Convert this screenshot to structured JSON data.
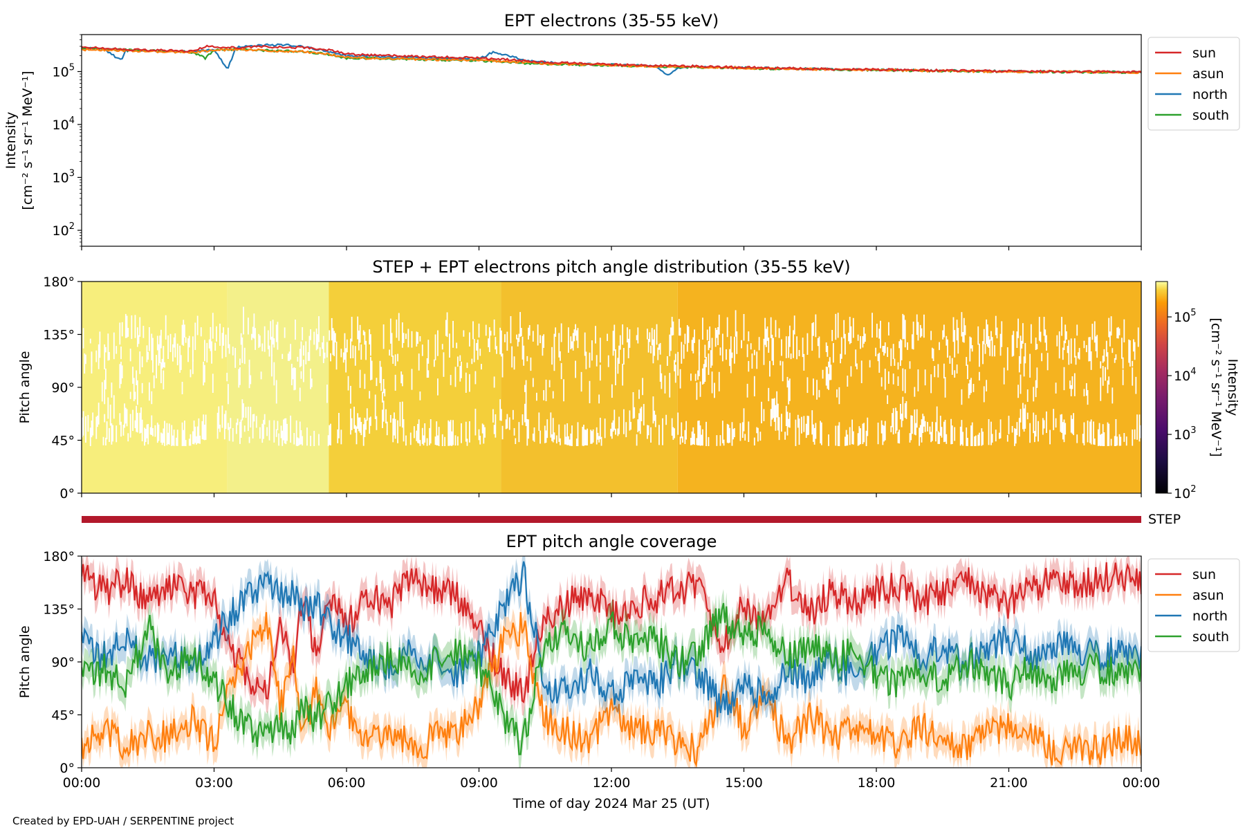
{
  "figure": {
    "credit": "Created by EPD-UAH / SERPENTINE project"
  },
  "chart_data": [
    {
      "type": "line",
      "title": "EPT electrons (35-55 keV)",
      "ylabel_line1": "Intensity",
      "ylabel_line2": "[cm⁻² s⁻¹ sr⁻¹ MeV⁻¹]",
      "yscale": "log",
      "ylim": [
        50,
        500000
      ],
      "yticks": [
        {
          "value": 100,
          "base": "10",
          "exp": "2"
        },
        {
          "value": 1000,
          "base": "10",
          "exp": "3"
        },
        {
          "value": 10000,
          "base": "10",
          "exp": "4"
        },
        {
          "value": 100000,
          "base": "10",
          "exp": "5"
        }
      ],
      "xlim_hours": [
        0,
        24
      ],
      "legend_position": "outside-right-top",
      "series": [
        {
          "name": "sun",
          "color": "#d62728",
          "x": [
            0,
            0.5,
            1,
            1.5,
            2,
            2.5,
            2.8,
            3,
            3.5,
            4,
            4.5,
            5,
            5.5,
            6,
            6.5,
            7,
            7.5,
            8,
            8.5,
            9,
            9.5,
            10,
            10.5,
            11,
            11.5,
            12,
            12.5,
            13,
            13.5,
            14,
            14.5,
            15,
            15.5,
            16,
            16.5,
            17,
            17.5,
            18,
            18.5,
            19,
            19.5,
            20,
            20.5,
            21,
            21.5,
            22,
            22.5,
            23,
            23.5,
            24
          ],
          "y": [
            290000,
            275000,
            262000,
            255000,
            250000,
            240000,
            300000,
            295000,
            280000,
            295000,
            290000,
            285000,
            265000,
            215000,
            205000,
            200000,
            195000,
            190000,
            185000,
            180000,
            172000,
            160000,
            150000,
            145000,
            140000,
            135000,
            132000,
            130000,
            128000,
            125000,
            122000,
            120000,
            117000,
            115000,
            113000,
            112000,
            110000,
            109000,
            108000,
            106000,
            105000,
            104000,
            103000,
            102000,
            101000,
            100000,
            99500,
            99000,
            98500,
            98000
          ]
        },
        {
          "name": "asun",
          "color": "#ff7f0e",
          "x": [
            0,
            0.5,
            1,
            1.5,
            2,
            2.5,
            3,
            3.5,
            4,
            4.5,
            5,
            5.5,
            6,
            6.5,
            7,
            7.5,
            8,
            8.5,
            9,
            9.5,
            10,
            10.5,
            11,
            11.5,
            12,
            12.5,
            13,
            13.5,
            14,
            14.5,
            15,
            15.5,
            16,
            16.5,
            17,
            17.5,
            18,
            18.5,
            19,
            19.5,
            20,
            20.5,
            21,
            21.5,
            22,
            22.5,
            23,
            23.5,
            24
          ],
          "y": [
            260000,
            255000,
            250000,
            242000,
            235000,
            228000,
            250000,
            262000,
            255000,
            245000,
            238000,
            220000,
            185000,
            178000,
            175000,
            172000,
            168000,
            165000,
            162000,
            158000,
            150000,
            142000,
            138000,
            135000,
            132000,
            128000,
            126000,
            124000,
            122000,
            120000,
            117000,
            115000,
            113000,
            111000,
            110000,
            108000,
            107000,
            106000,
            104000,
            103000,
            102000,
            101000,
            100000,
            99500,
            99000,
            98500,
            98000,
            97500,
            97000
          ]
        },
        {
          "name": "north",
          "color": "#1f77b4",
          "x": [
            0,
            0.5,
            0.9,
            1,
            1.5,
            2,
            2.5,
            3,
            3.3,
            3.5,
            4,
            4.5,
            5,
            5.5,
            6,
            6.5,
            7,
            7.5,
            8,
            8.5,
            9,
            9.3,
            9.6,
            10,
            10.5,
            11,
            11.5,
            12,
            12.5,
            13,
            13.3,
            13.5,
            14,
            14.5,
            15,
            15.5,
            16,
            16.5,
            17,
            17.5,
            18,
            18.5,
            19,
            19.5,
            20,
            20.5,
            21,
            21.5,
            22,
            22.5,
            23,
            23.5,
            24
          ],
          "y": [
            280000,
            270000,
            160000,
            250000,
            245000,
            238000,
            235000,
            260000,
            110000,
            285000,
            315000,
            320000,
            300000,
            245000,
            200000,
            195000,
            190000,
            185000,
            180000,
            175000,
            170000,
            230000,
            210000,
            165000,
            150000,
            143000,
            138000,
            134000,
            130000,
            128000,
            85000,
            120000,
            124000,
            121000,
            118000,
            116000,
            114000,
            112000,
            111000,
            109000,
            108000,
            107000,
            105000,
            104000,
            103000,
            102000,
            101000,
            100000,
            99500,
            99000,
            98500,
            98000,
            97500
          ]
        },
        {
          "name": "south",
          "color": "#2ca02c",
          "x": [
            0,
            0.5,
            1,
            1.5,
            2,
            2.5,
            2.8,
            3,
            3.5,
            4,
            4.5,
            5,
            5.5,
            6,
            6.5,
            7,
            7.5,
            8,
            8.5,
            9,
            9.5,
            10,
            10.5,
            11,
            11.5,
            12,
            12.5,
            13,
            13.5,
            14,
            14.5,
            15,
            15.5,
            16,
            16.5,
            17,
            17.5,
            18,
            18.5,
            19,
            19.5,
            20,
            20.5,
            21,
            21.5,
            22,
            22.5,
            23,
            23.5,
            24
          ],
          "y": [
            275000,
            268000,
            255000,
            248000,
            240000,
            232000,
            180000,
            255000,
            265000,
            255000,
            245000,
            240000,
            215000,
            180000,
            178000,
            175000,
            170000,
            166000,
            162000,
            160000,
            155000,
            145000,
            140000,
            136000,
            133000,
            130000,
            127000,
            125000,
            123000,
            121000,
            118000,
            116000,
            114000,
            112000,
            110000,
            109000,
            108000,
            107000,
            105000,
            104000,
            103000,
            102000,
            101000,
            100000,
            99500,
            99000,
            98500,
            98000,
            97500,
            97000
          ]
        }
      ]
    },
    {
      "type": "heatmap",
      "title": "STEP + EPT electrons pitch angle distribution (35-55 keV)",
      "ylabel": "Pitch angle",
      "ylim": [
        0,
        180
      ],
      "yticks": [
        "0°",
        "45°",
        "90°",
        "135°",
        "180°"
      ],
      "xlim_hours": [
        0,
        24
      ],
      "colorscale": "inferno",
      "colorbar": {
        "label_line1": "Intensity",
        "label_line2": "[cm⁻² s⁻¹ sr⁻¹ MeV⁻¹]",
        "scale": "log",
        "range": [
          100,
          400000
        ],
        "ticks": [
          {
            "value": 100,
            "base": "10",
            "exp": "2"
          },
          {
            "value": 1000,
            "base": "10",
            "exp": "3"
          },
          {
            "value": 10000,
            "base": "10",
            "exp": "4"
          },
          {
            "value": 100000,
            "base": "10",
            "exp": "5"
          }
        ]
      },
      "time_blocks": [
        {
          "start": 0,
          "end": 3.3,
          "color": "#f7ee7c"
        },
        {
          "start": 3.3,
          "end": 5.6,
          "color": "#f3f08a"
        },
        {
          "start": 5.6,
          "end": 9.5,
          "color": "#f4cf3a"
        },
        {
          "start": 9.5,
          "end": 13.5,
          "color": "#f3c02d"
        },
        {
          "start": 13.5,
          "end": 24,
          "color": "#f5b31f"
        }
      ]
    },
    {
      "type": "bar",
      "label": "STEP",
      "color": "#b2182b",
      "xlim_hours": [
        0,
        24
      ]
    },
    {
      "type": "line",
      "title": "EPT pitch angle coverage",
      "ylabel": "Pitch angle",
      "xlabel": "Time of day 2024 Mar 25 (UT)",
      "ylim": [
        0,
        180
      ],
      "yticks": [
        "0°",
        "45°",
        "90°",
        "135°",
        "180°"
      ],
      "xticks": [
        "00:00",
        "03:00",
        "06:00",
        "09:00",
        "12:00",
        "15:00",
        "18:00",
        "21:00",
        "00:00"
      ],
      "xlim_hours": [
        0,
        24
      ],
      "legend_position": "outside-right-top",
      "band_halfwidth_deg": 12,
      "series": [
        {
          "name": "sun",
          "color": "#d62728",
          "x": [
            0,
            0.5,
            1,
            1.5,
            2,
            2.5,
            3,
            3.3,
            3.6,
            3.9,
            4.2,
            4.5,
            4.8,
            5,
            5.3,
            5.6,
            6,
            6.5,
            7,
            7.5,
            8,
            8.5,
            9,
            9.3,
            9.6,
            10,
            10.5,
            11,
            11.5,
            12,
            12.5,
            13,
            13.5,
            14,
            14.5,
            15,
            15.5,
            16,
            16.5,
            17,
            17.5,
            18,
            18.5,
            19,
            19.5,
            20,
            20.5,
            21,
            21.5,
            22,
            22.5,
            23,
            23.5,
            24
          ],
          "y": [
            165,
            150,
            160,
            140,
            155,
            145,
            150,
            105,
            90,
            70,
            60,
            130,
            75,
            150,
            100,
            145,
            120,
            150,
            140,
            160,
            150,
            145,
            120,
            95,
            80,
            60,
            130,
            140,
            150,
            130,
            140,
            145,
            150,
            160,
            100,
            140,
            120,
            160,
            130,
            150,
            140,
            150,
            155,
            140,
            150,
            160,
            145,
            140,
            150,
            160,
            155,
            160,
            165,
            160
          ]
        },
        {
          "name": "asun",
          "color": "#ff7f0e",
          "x": [
            0,
            0.5,
            1,
            1.5,
            2,
            2.5,
            3,
            3.3,
            3.6,
            3.9,
            4.2,
            4.5,
            4.8,
            5,
            5.3,
            5.6,
            6,
            6.5,
            7,
            7.5,
            8,
            8.5,
            9,
            9.3,
            9.6,
            10,
            10.5,
            11,
            11.5,
            12,
            12.5,
            13,
            13.5,
            14,
            14.5,
            15,
            15.5,
            16,
            16.5,
            17,
            17.5,
            18,
            18.5,
            19,
            19.5,
            20,
            20.5,
            21,
            21.5,
            22,
            22.5,
            23,
            23.5,
            24
          ],
          "y": [
            20,
            35,
            15,
            30,
            25,
            40,
            20,
            60,
            85,
            110,
            120,
            50,
            95,
            20,
            70,
            30,
            50,
            25,
            35,
            15,
            25,
            30,
            55,
            85,
            110,
            120,
            40,
            30,
            25,
            45,
            35,
            30,
            20,
            15,
            70,
            35,
            60,
            20,
            45,
            25,
            35,
            25,
            20,
            35,
            25,
            15,
            30,
            35,
            25,
            15,
            20,
            15,
            25,
            20
          ]
        },
        {
          "name": "north",
          "color": "#1f77b4",
          "x": [
            0,
            0.5,
            1,
            1.5,
            2,
            2.5,
            3,
            3.3,
            3.6,
            3.9,
            4.2,
            4.5,
            4.8,
            5,
            5.3,
            5.6,
            6,
            6.5,
            7,
            7.5,
            8,
            8.5,
            9,
            9.3,
            9.6,
            10,
            10.5,
            11,
            11.5,
            12,
            12.5,
            13,
            13.5,
            14,
            14.5,
            15,
            15.5,
            16,
            16.5,
            17,
            17.5,
            18,
            18.5,
            19,
            19.5,
            20,
            20.5,
            21,
            21.5,
            22,
            22.5,
            23,
            23.5,
            24
          ],
          "y": [
            105,
            95,
            110,
            90,
            100,
            85,
            110,
            125,
            140,
            150,
            155,
            145,
            150,
            130,
            140,
            125,
            110,
            95,
            85,
            100,
            90,
            80,
            95,
            115,
            140,
            165,
            70,
            65,
            80,
            60,
            75,
            70,
            90,
            80,
            50,
            70,
            60,
            85,
            75,
            90,
            80,
            100,
            110,
            95,
            105,
            90,
            100,
            110,
            95,
            105,
            100,
            95,
            100,
            95
          ]
        },
        {
          "name": "south",
          "color": "#2ca02c",
          "x": [
            0,
            0.5,
            1,
            1.5,
            2,
            2.5,
            3,
            3.3,
            3.6,
            3.9,
            4.2,
            4.5,
            4.8,
            5,
            5.3,
            5.6,
            6,
            6.5,
            7,
            7.5,
            8,
            8.5,
            9,
            9.3,
            9.6,
            10,
            10.5,
            11,
            11.5,
            12,
            12.5,
            13,
            13.5,
            14,
            14.5,
            15,
            15.5,
            16,
            16.5,
            17,
            17.5,
            18,
            18.5,
            19,
            19.5,
            20,
            20.5,
            21,
            21.5,
            22,
            22.5,
            23,
            23.5,
            24
          ],
          "y": [
            75,
            85,
            70,
            120,
            80,
            95,
            75,
            55,
            40,
            30,
            25,
            35,
            30,
            50,
            40,
            55,
            70,
            85,
            95,
            80,
            90,
            100,
            85,
            65,
            40,
            20,
            110,
            115,
            100,
            120,
            105,
            110,
            90,
            100,
            130,
            110,
            120,
            95,
            105,
            90,
            100,
            80,
            70,
            85,
            75,
            90,
            80,
            70,
            85,
            75,
            80,
            85,
            80,
            85
          ]
        }
      ]
    }
  ]
}
